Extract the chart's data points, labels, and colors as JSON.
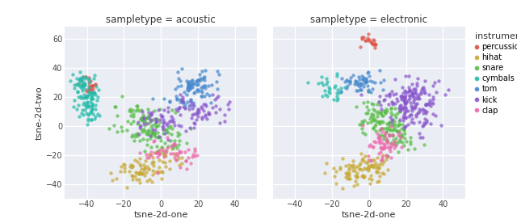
{
  "title_left": "sampletype = acoustic",
  "title_right": "sampletype = electronic",
  "xlabel": "tsne-2d-one",
  "ylabel": "tsne-2d-two",
  "legend_title": "instrument",
  "instruments": [
    "percussion",
    "hihat",
    "snare",
    "cymbals",
    "tom",
    "kick",
    "clap"
  ],
  "colors": {
    "percussion": "#dd5145",
    "hihat": "#c8a832",
    "snare": "#55bb44",
    "cymbals": "#22bbaa",
    "tom": "#4488cc",
    "kick": "#8855cc",
    "clap": "#ee66aa"
  },
  "bg_color": "#eaeef4",
  "fig_bg": "#ffffff",
  "xlim": [
    -52,
    52
  ],
  "ylim": [
    -50,
    68
  ],
  "xticks": [
    -40,
    -20,
    0,
    20,
    40
  ],
  "yticks": [
    -40,
    -20,
    0,
    20,
    40,
    60
  ],
  "marker_size": 10,
  "alpha": 0.7,
  "clusters_acoustic": {
    "cymbals": {
      "centers": [
        [
          -43,
          28
        ],
        [
          -41,
          18
        ],
        [
          -38,
          8
        ],
        [
          -42,
          32
        ],
        [
          -40,
          22
        ],
        [
          -39,
          14
        ]
      ],
      "n": 110,
      "spread": 3.0
    },
    "percussion": {
      "centers": [
        [
          -40,
          30
        ],
        [
          -40,
          26
        ],
        [
          -39,
          22
        ],
        [
          -38,
          27
        ]
      ],
      "n": 25,
      "spread": 2.5
    },
    "snare": {
      "centers": [
        [
          -18,
          10
        ],
        [
          -10,
          5
        ],
        [
          -5,
          0
        ],
        [
          0,
          -5
        ],
        [
          5,
          -8
        ],
        [
          -15,
          0
        ],
        [
          -8,
          -5
        ],
        [
          3,
          -10
        ]
      ],
      "n": 130,
      "spread": 5.0
    },
    "hihat": {
      "centers": [
        [
          -20,
          -28
        ],
        [
          -15,
          -35
        ],
        [
          -10,
          -30
        ],
        [
          -5,
          -25
        ],
        [
          0,
          -20
        ],
        [
          5,
          -25
        ],
        [
          -8,
          -32
        ]
      ],
      "n": 90,
      "spread": 4.5
    },
    "tom": {
      "centers": [
        [
          8,
          20
        ],
        [
          15,
          28
        ],
        [
          22,
          25
        ],
        [
          18,
          18
        ],
        [
          12,
          25
        ],
        [
          25,
          30
        ],
        [
          20,
          22
        ]
      ],
      "n": 90,
      "spread": 4.5
    },
    "kick": {
      "centers": [
        [
          -2,
          8
        ],
        [
          5,
          3
        ],
        [
          -8,
          2
        ],
        [
          10,
          12
        ],
        [
          3,
          -3
        ],
        [
          15,
          15
        ],
        [
          20,
          10
        ],
        [
          25,
          8
        ],
        [
          30,
          12
        ]
      ],
      "n": 110,
      "spread": 5.0
    },
    "clap": {
      "centers": [
        [
          -5,
          -18
        ],
        [
          5,
          -15
        ],
        [
          0,
          -20
        ],
        [
          10,
          -18
        ],
        [
          15,
          -22
        ]
      ],
      "n": 50,
      "spread": 4.0
    }
  },
  "clusters_electronic": {
    "percussion": {
      "centers": [
        [
          -2,
          57
        ],
        [
          0,
          60
        ],
        [
          2,
          56
        ],
        [
          -1,
          59
        ],
        [
          1,
          55
        ]
      ],
      "n": 20,
      "spread": 2.0
    },
    "cymbals": {
      "centers": [
        [
          -22,
          28
        ],
        [
          -18,
          25
        ],
        [
          -15,
          30
        ],
        [
          -20,
          22
        ],
        [
          -25,
          25
        ]
      ],
      "n": 30,
      "spread": 3.5
    },
    "tom": {
      "centers": [
        [
          -10,
          32
        ],
        [
          -5,
          30
        ],
        [
          -8,
          27
        ],
        [
          0,
          33
        ],
        [
          -3,
          28
        ],
        [
          2,
          28
        ]
      ],
      "n": 55,
      "spread": 3.5
    },
    "snare": {
      "centers": [
        [
          0,
          10
        ],
        [
          5,
          5
        ],
        [
          10,
          0
        ],
        [
          15,
          -5
        ],
        [
          8,
          8
        ],
        [
          3,
          2
        ],
        [
          12,
          -2
        ],
        [
          18,
          -8
        ]
      ],
      "n": 140,
      "spread": 5.0
    },
    "hihat": {
      "centers": [
        [
          -15,
          -30
        ],
        [
          -10,
          -35
        ],
        [
          -5,
          -28
        ],
        [
          0,
          -32
        ],
        [
          5,
          -25
        ],
        [
          -8,
          -28
        ],
        [
          3,
          -30
        ]
      ],
      "n": 100,
      "spread": 4.5
    },
    "kick": {
      "centers": [
        [
          15,
          18
        ],
        [
          22,
          12
        ],
        [
          28,
          5
        ],
        [
          25,
          20
        ],
        [
          20,
          8
        ],
        [
          30,
          15
        ],
        [
          18,
          22
        ],
        [
          25,
          25
        ]
      ],
      "n": 180,
      "spread": 5.5
    },
    "clap": {
      "centers": [
        [
          5,
          -15
        ],
        [
          10,
          -10
        ],
        [
          8,
          -18
        ],
        [
          12,
          -12
        ],
        [
          6,
          -8
        ]
      ],
      "n": 60,
      "spread": 4.0
    }
  }
}
